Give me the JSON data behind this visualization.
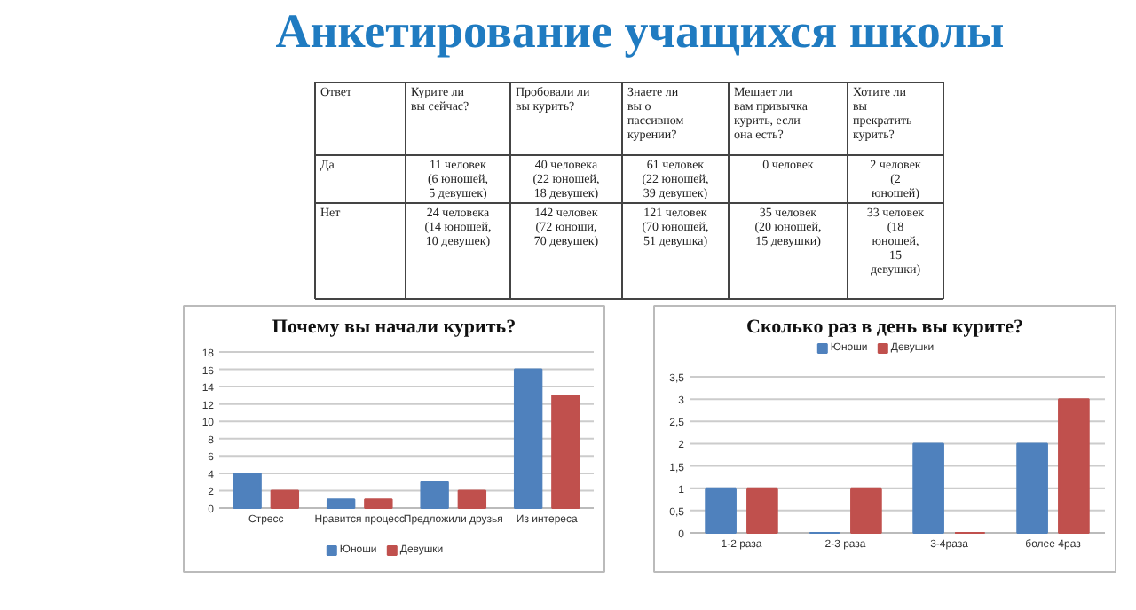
{
  "chart_data": [
    {
      "type": "other",
      "title": "Анкетирование учащихся школы",
      "annotations": [
        "Ответ",
        "Курите ли\nвы сейчас?",
        "Пробовали ли\nвы курить?",
        "Знаете ли\nвы о\nпассивном\nкурении?",
        "Мешает ли\nвам привычка\nкурить, если\nона есть?",
        "Хотите ли\nвы\nпрекратить\nкурить?",
        "Да",
        "11 человек\n(6 юношей,\n5 девушек)",
        "40 человека\n(22 юношей,\n18 девушек)",
        "61 человек\n(22 юношей,\n39 девушек)",
        "0 человек",
        "2 человек\n(2\nюношей)",
        "Нет",
        "24 человека\n(14 юношей,\n10 девушек)",
        "142 человек\n(72 юноши,\n70 девушек)",
        "121 человек\n(70 юношей,\n51 девушка)",
        "35 человек\n(20 юношей,\n15 девушки)",
        "33 человек\n(18\nюношей,\n15\nдевушки)"
      ]
    },
    {
      "type": "bar",
      "title": "Почему вы начали курить?",
      "categories": [
        "Стресс",
        "Нравится процесс",
        "Предложили друзья",
        "Из интереса"
      ],
      "series": [
        {
          "name": "Юноши",
          "color": "#4f81bd",
          "values": [
            4,
            1,
            3,
            16
          ]
        },
        {
          "name": "Девушки",
          "color": "#c0504d",
          "values": [
            2,
            1,
            2,
            13
          ]
        }
      ],
      "ylim": [
        0,
        18
      ],
      "yticks": [
        0,
        2,
        4,
        6,
        8,
        10,
        12,
        14,
        16,
        18
      ],
      "grid": "y",
      "legend": "bottom"
    },
    {
      "type": "bar",
      "title": "Сколько раз в день вы курите?",
      "categories": [
        "1-2 раза",
        "2-3 раза",
        "3-4раза",
        "более 4раз"
      ],
      "series": [
        {
          "name": "Юноши",
          "color": "#4f81bd",
          "values": [
            1,
            0,
            2,
            2
          ]
        },
        {
          "name": "Девушки",
          "color": "#c0504d",
          "values": [
            1,
            1,
            0,
            3
          ]
        }
      ],
      "ylim": [
        0,
        3.5
      ],
      "yticks": [
        0,
        {
          "value": 0.5,
          "label": "0,5"
        },
        1,
        {
          "value": 1.5,
          "label": "1,5"
        },
        2,
        {
          "value": 2.5,
          "label": "2,5"
        },
        3,
        {
          "value": 3.5,
          "label": "3,5"
        }
      ],
      "grid": "y",
      "legend": "top"
    }
  ]
}
